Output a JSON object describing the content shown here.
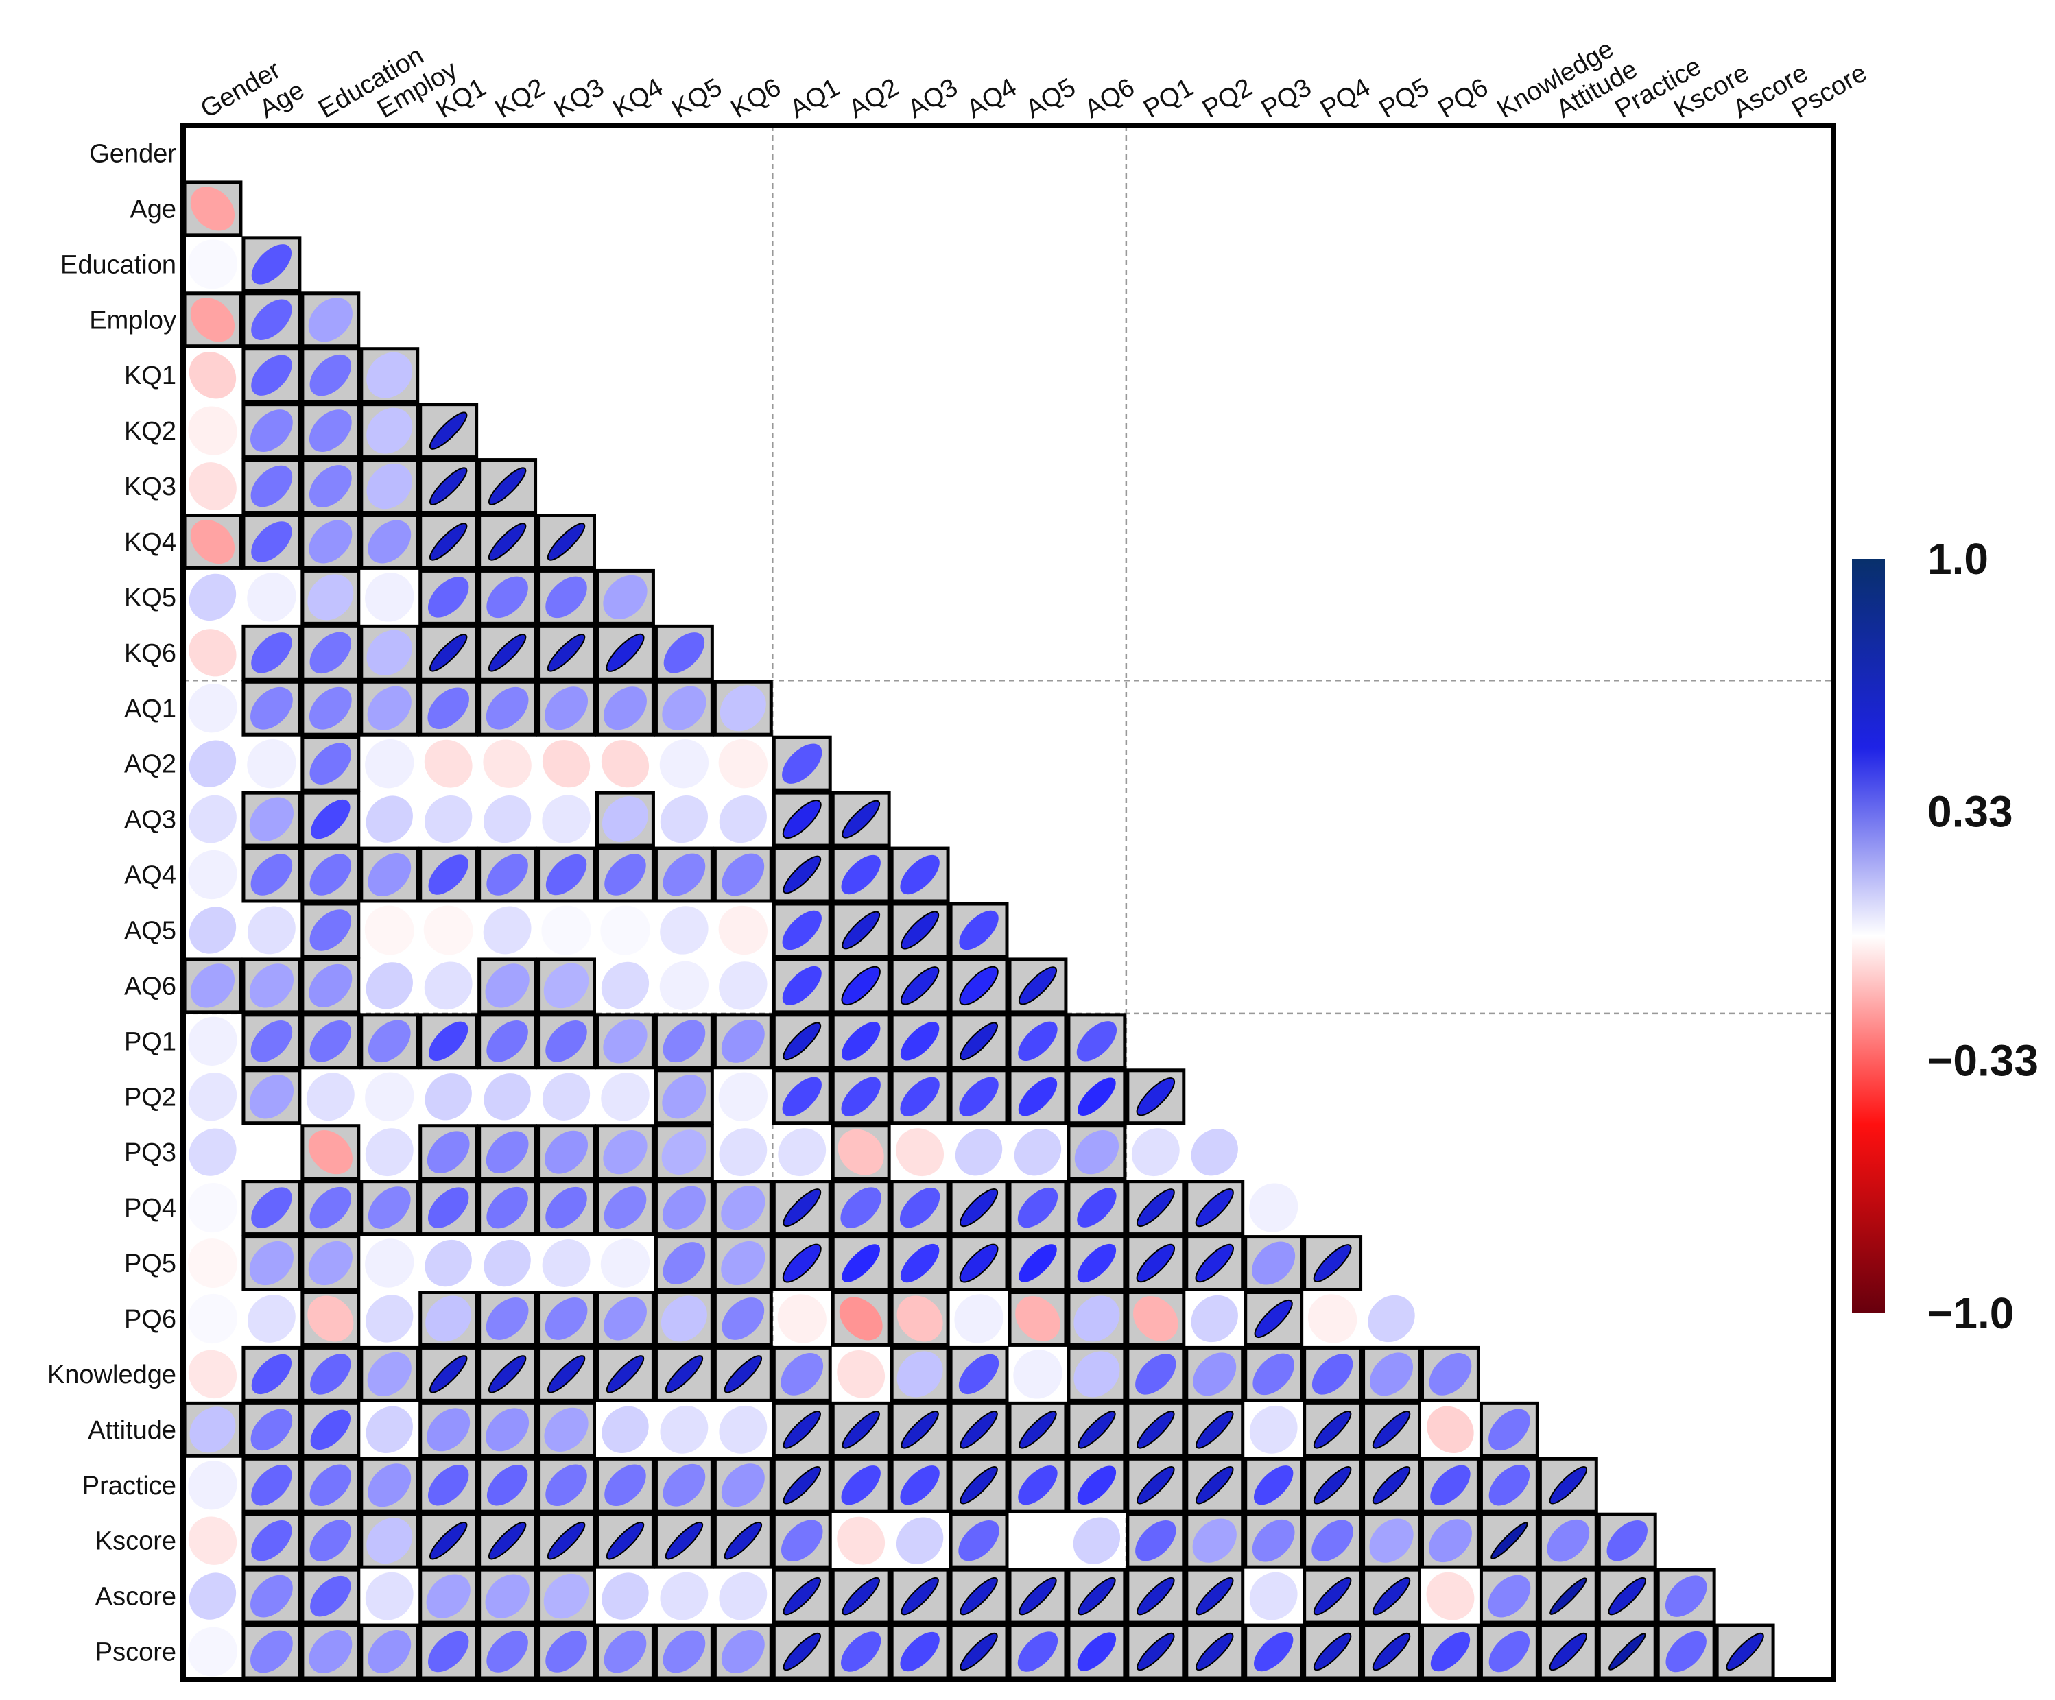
{
  "chart_data": {
    "type": "heatmap",
    "variables": [
      "Gender",
      "Age",
      "Education",
      "Employ",
      "KQ1",
      "KQ2",
      "KQ3",
      "KQ4",
      "KQ5",
      "KQ6",
      "AQ1",
      "AQ2",
      "AQ3",
      "AQ4",
      "AQ5",
      "AQ6",
      "PQ1",
      "PQ2",
      "PQ3",
      "PQ4",
      "PQ5",
      "PQ6",
      "Knowledge",
      "Attitude",
      "Practice",
      "Kscore",
      "Ascore",
      "Pscore"
    ],
    "lower_triangle_rows": [
      [],
      [
        -0.3
      ],
      [
        0.02,
        0.55
      ],
      [
        -0.3,
        0.5,
        0.3
      ],
      [
        -0.15,
        0.5,
        0.45,
        0.2
      ],
      [
        -0.05,
        0.4,
        0.4,
        0.2,
        0.85
      ],
      [
        -0.1,
        0.45,
        0.4,
        0.22,
        0.85,
        0.85
      ],
      [
        -0.3,
        0.5,
        0.35,
        0.35,
        0.85,
        0.85,
        0.85
      ],
      [
        0.15,
        0.05,
        0.2,
        0.05,
        0.5,
        0.45,
        0.45,
        0.3
      ],
      [
        -0.12,
        0.5,
        0.45,
        0.22,
        0.85,
        0.85,
        0.85,
        0.8,
        0.5
      ],
      [
        0.05,
        0.4,
        0.4,
        0.3,
        0.45,
        0.4,
        0.35,
        0.35,
        0.3,
        0.2
      ],
      [
        0.15,
        0.05,
        0.45,
        0.05,
        -0.1,
        -0.08,
        -0.12,
        -0.12,
        0.05,
        -0.05,
        0.55
      ],
      [
        0.1,
        0.3,
        0.6,
        0.15,
        0.12,
        0.12,
        0.08,
        0.2,
        0.12,
        0.12,
        0.75,
        0.82
      ],
      [
        0.05,
        0.45,
        0.45,
        0.35,
        0.55,
        0.45,
        0.5,
        0.45,
        0.4,
        0.4,
        0.82,
        0.6,
        0.6
      ],
      [
        0.15,
        0.1,
        0.45,
        -0.03,
        -0.03,
        0.1,
        0.02,
        0.02,
        0.08,
        -0.05,
        0.6,
        0.82,
        0.8,
        0.6
      ],
      [
        0.3,
        0.3,
        0.35,
        0.15,
        0.1,
        0.3,
        0.25,
        0.12,
        0.05,
        0.08,
        0.62,
        0.72,
        0.78,
        0.72,
        0.8
      ],
      [
        0.05,
        0.45,
        0.45,
        0.4,
        0.6,
        0.45,
        0.45,
        0.3,
        0.4,
        0.35,
        0.82,
        0.65,
        0.65,
        0.82,
        0.6,
        0.55
      ],
      [
        0.08,
        0.3,
        0.1,
        0.05,
        0.15,
        0.15,
        0.12,
        0.08,
        0.3,
        0.05,
        0.6,
        0.6,
        0.6,
        0.6,
        0.65,
        0.7,
        0.78
      ],
      [
        0.12,
        0.0,
        -0.3,
        0.1,
        0.4,
        0.4,
        0.35,
        0.3,
        0.25,
        0.1,
        0.1,
        -0.2,
        -0.1,
        0.15,
        0.15,
        0.3,
        0.1,
        0.15
      ],
      [
        0.02,
        0.5,
        0.45,
        0.4,
        0.5,
        0.45,
        0.45,
        0.4,
        0.35,
        0.3,
        0.82,
        0.5,
        0.55,
        0.8,
        0.55,
        0.6,
        0.82,
        0.8,
        0.05
      ],
      [
        -0.03,
        0.3,
        0.3,
        0.05,
        0.15,
        0.15,
        0.1,
        0.05,
        0.4,
        0.3,
        0.75,
        0.7,
        0.65,
        0.75,
        0.7,
        0.65,
        0.78,
        0.78,
        0.35,
        0.82
      ],
      [
        0.02,
        0.1,
        -0.2,
        0.12,
        0.2,
        0.4,
        0.4,
        0.35,
        0.2,
        0.4,
        -0.05,
        -0.35,
        -0.2,
        0.05,
        -0.25,
        0.2,
        -0.25,
        0.15,
        0.8,
        -0.05,
        0.15
      ],
      [
        -0.08,
        0.55,
        0.5,
        0.3,
        0.85,
        0.85,
        0.85,
        0.85,
        0.85,
        0.85,
        0.4,
        -0.1,
        0.2,
        0.55,
        0.05,
        0.2,
        0.5,
        0.35,
        0.45,
        0.5,
        0.35,
        0.4
      ],
      [
        0.2,
        0.45,
        0.55,
        0.15,
        0.35,
        0.35,
        0.3,
        0.15,
        0.1,
        0.1,
        0.85,
        0.85,
        0.85,
        0.85,
        0.85,
        0.85,
        0.85,
        0.85,
        0.1,
        0.85,
        0.85,
        -0.15,
        0.45
      ],
      [
        0.05,
        0.5,
        0.45,
        0.35,
        0.5,
        0.5,
        0.45,
        0.45,
        0.4,
        0.35,
        0.85,
        0.6,
        0.6,
        0.85,
        0.6,
        0.65,
        0.85,
        0.85,
        0.6,
        0.85,
        0.85,
        0.55,
        0.5,
        0.85
      ],
      [
        -0.08,
        0.5,
        0.45,
        0.2,
        0.85,
        0.85,
        0.85,
        0.85,
        0.85,
        0.85,
        0.45,
        -0.1,
        0.15,
        0.5,
        0.0,
        0.15,
        0.5,
        0.3,
        0.4,
        0.45,
        0.3,
        0.35,
        0.95,
        0.4,
        0.5
      ],
      [
        0.15,
        0.4,
        0.5,
        0.1,
        0.3,
        0.3,
        0.25,
        0.15,
        0.1,
        0.1,
        0.85,
        0.85,
        0.85,
        0.85,
        0.85,
        0.85,
        0.85,
        0.85,
        0.1,
        0.85,
        0.85,
        -0.1,
        0.4,
        0.95,
        0.85,
        0.45
      ],
      [
        0.03,
        0.4,
        0.35,
        0.35,
        0.5,
        0.45,
        0.45,
        0.4,
        0.4,
        0.35,
        0.85,
        0.55,
        0.6,
        0.85,
        0.55,
        0.65,
        0.85,
        0.85,
        0.6,
        0.85,
        0.85,
        0.6,
        0.5,
        0.85,
        0.95,
        0.5,
        0.85
      ]
    ],
    "colorbar": {
      "ticks": [
        "1.0",
        "0.33",
        "−0.33",
        "−1.0"
      ],
      "min": -1.0,
      "max": 1.0,
      "colors": [
        "#08306b",
        "#0000ff",
        "#ffffff",
        "#ff0000",
        "#67000d"
      ]
    },
    "legend": "right"
  }
}
